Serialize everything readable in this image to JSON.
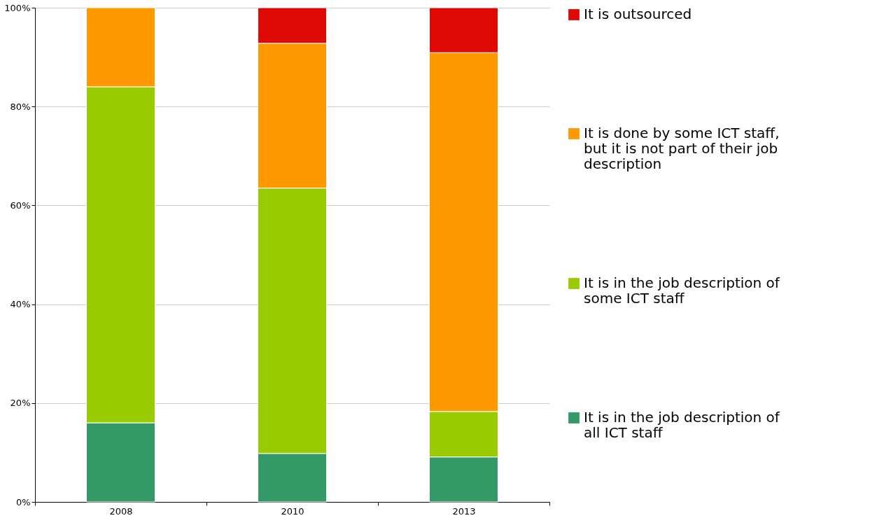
{
  "chart_data": {
    "type": "bar",
    "stacked": true,
    "categories": [
      "2008",
      "2010",
      "2013"
    ],
    "series": [
      {
        "name": "It is in the job description of all ICT staff",
        "color": "#339966",
        "values": [
          16.0,
          9.8,
          9.1
        ]
      },
      {
        "name": "It is in the job description of some ICT staff",
        "color": "#99cc00",
        "values": [
          68.0,
          53.7,
          9.2
        ]
      },
      {
        "name": "It is done by some ICT staff, but it is not part of their job description",
        "color": "#ff9900",
        "values": [
          16.0,
          29.3,
          72.6
        ]
      },
      {
        "name": "It is outsourced",
        "color": "#e00a05",
        "values": [
          null,
          7.2,
          9.1
        ]
      }
    ],
    "ylim": [
      0,
      100
    ],
    "yticks": [
      {
        "value": 0,
        "label": "0%"
      },
      {
        "value": 20,
        "label": "20%"
      },
      {
        "value": 40,
        "label": "40%"
      },
      {
        "value": 60,
        "label": "60%"
      },
      {
        "value": 80,
        "label": "80%"
      },
      {
        "value": 100,
        "label": "100%"
      }
    ],
    "grid": "y",
    "legend": "right"
  }
}
